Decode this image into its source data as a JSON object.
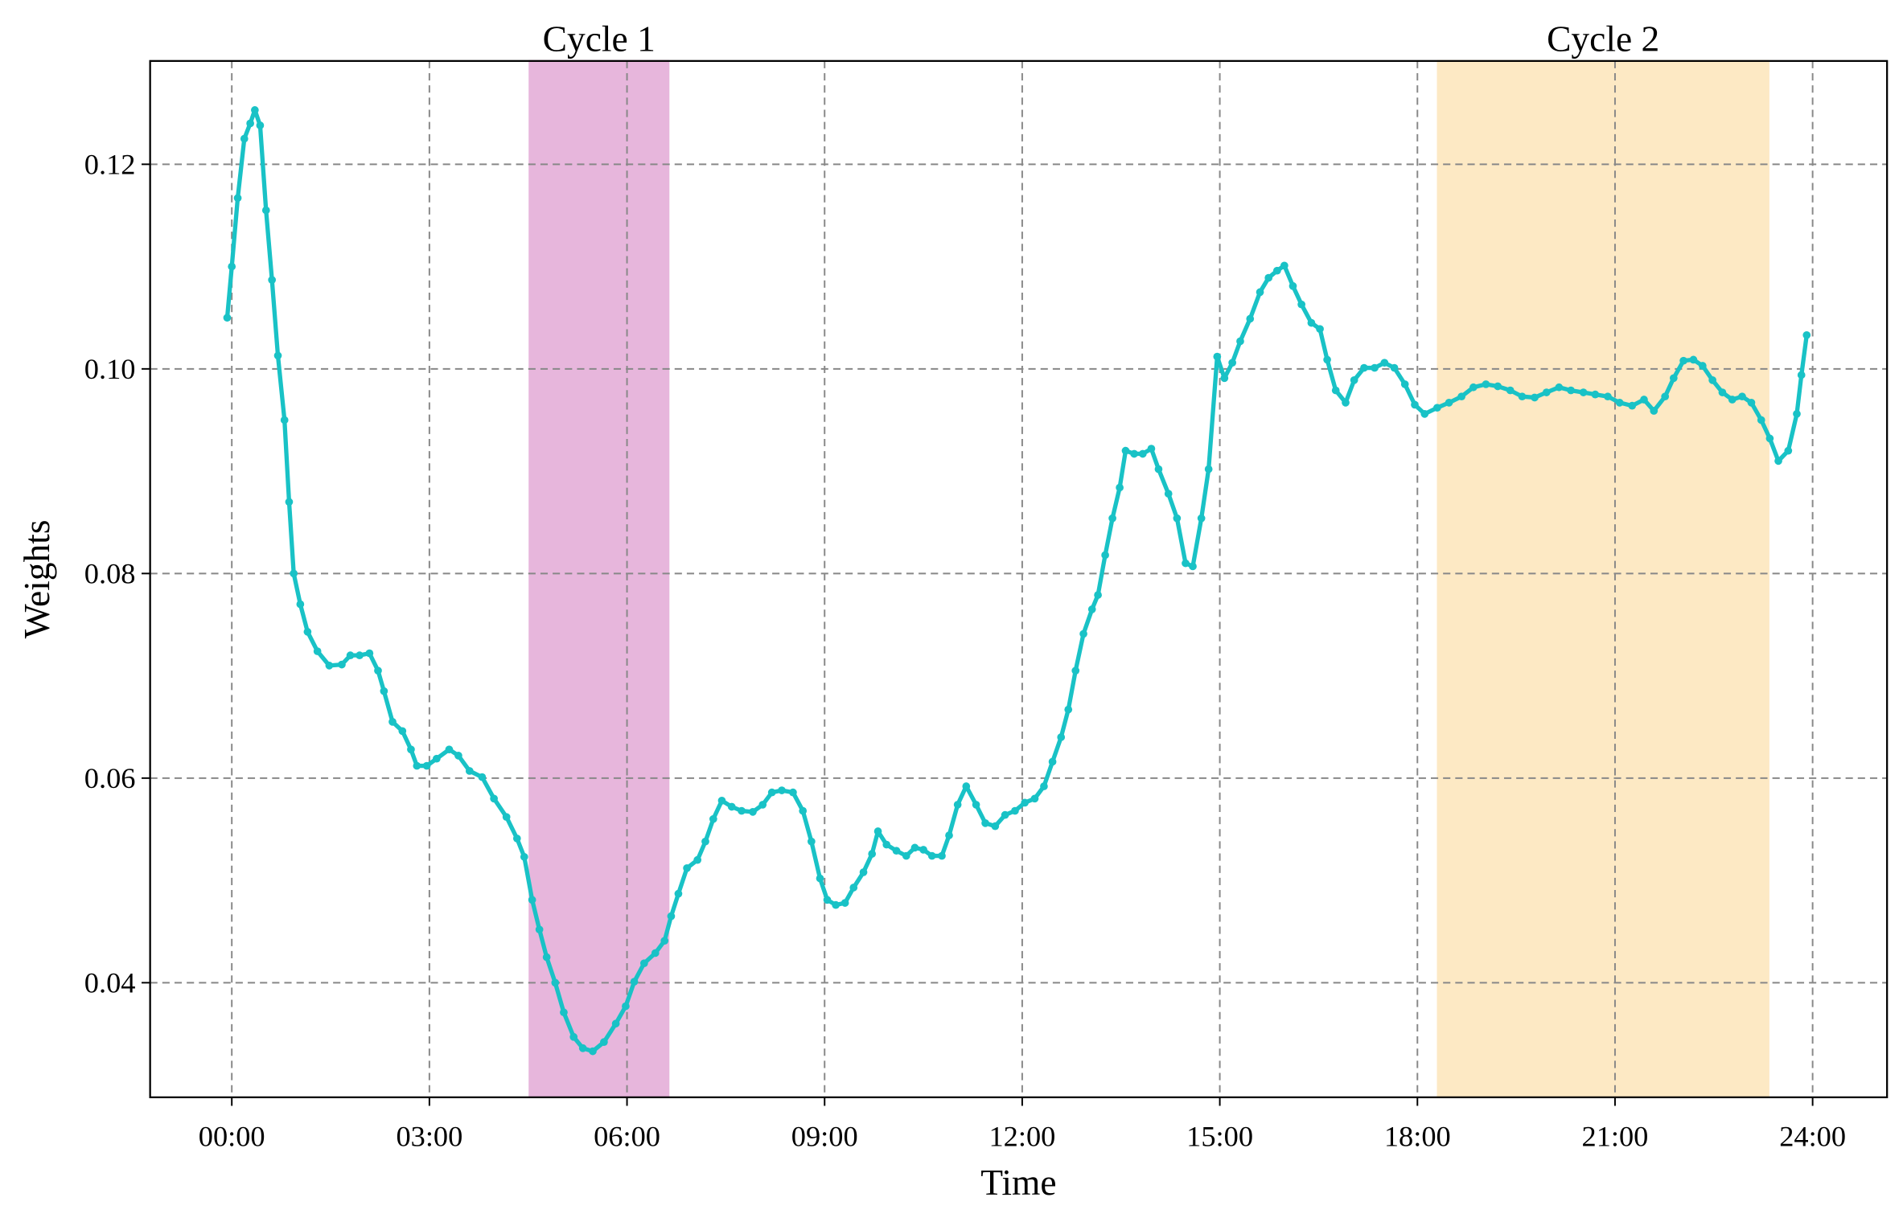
{
  "chart_data": {
    "type": "line",
    "xlabel": "Time",
    "ylabel": "Weights",
    "color": "#19c2c6",
    "grid": true,
    "xlim": [
      -1.24,
      25.13
    ],
    "ylim": [
      0.0288,
      0.1301
    ],
    "xticks": [
      {
        "value": 0,
        "label": "00:00"
      },
      {
        "value": 3,
        "label": "03:00"
      },
      {
        "value": 6,
        "label": "06:00"
      },
      {
        "value": 9,
        "label": "09:00"
      },
      {
        "value": 12,
        "label": "12:00"
      },
      {
        "value": 15,
        "label": "15:00"
      },
      {
        "value": 18,
        "label": "18:00"
      },
      {
        "value": 21,
        "label": "21:00"
      },
      {
        "value": 24,
        "label": "24:00"
      }
    ],
    "yticks": [
      0.04,
      0.06,
      0.08,
      {
        "value": 0.1,
        "label": "0.10"
      },
      0.12
    ],
    "spans": [
      {
        "label": "Cycle 1",
        "start": 4.52,
        "end": 6.63,
        "color": "#e7b6dc"
      },
      {
        "label": "Cycle 2",
        "start": 18.31,
        "end": 23.33,
        "color": "#fde9c4"
      }
    ],
    "x": [
      -0.07,
      0,
      0.09,
      0.19,
      0.28,
      0.35,
      0.43,
      0.52,
      0.61,
      0.7,
      0.8,
      0.87,
      0.94,
      1.04,
      1.15,
      1.3,
      1.48,
      1.67,
      1.8,
      1.94,
      2.09,
      2.22,
      2.31,
      2.44,
      2.59,
      2.72,
      2.81,
      2.96,
      3.11,
      3.3,
      3.44,
      3.61,
      3.8,
      3.98,
      4.17,
      4.33,
      4.44,
      4.56,
      4.67,
      4.78,
      4.91,
      5.04,
      5.19,
      5.33,
      5.48,
      5.65,
      5.83,
      5.98,
      6.11,
      6.26,
      6.43,
      6.57,
      6.67,
      6.78,
      6.91,
      7.07,
      7.19,
      7.31,
      7.44,
      7.59,
      7.74,
      7.91,
      8.06,
      8.2,
      8.35,
      8.52,
      8.67,
      8.8,
      8.93,
      9.04,
      9.17,
      9.31,
      9.44,
      9.59,
      9.72,
      9.81,
      9.94,
      10.09,
      10.24,
      10.37,
      10.5,
      10.63,
      10.78,
      10.89,
      11.02,
      11.15,
      11.3,
      11.44,
      11.59,
      11.74,
      11.89,
      12.04,
      12.19,
      12.33,
      12.46,
      12.59,
      12.7,
      12.81,
      12.93,
      13.06,
      13.15,
      13.26,
      13.37,
      13.48,
      13.57,
      13.7,
      13.83,
      13.96,
      14.07,
      14.22,
      14.35,
      14.48,
      14.59,
      14.72,
      14.83,
      14.96,
      15.07,
      15.19,
      15.31,
      15.46,
      15.61,
      15.74,
      15.87,
      15.98,
      16.11,
      16.24,
      16.39,
      16.52,
      16.63,
      16.76,
      16.91,
      17.04,
      17.19,
      17.35,
      17.5,
      17.65,
      17.81,
      17.96,
      18.11,
      18.3,
      18.48,
      18.67,
      18.85,
      19.04,
      19.22,
      19.41,
      19.59,
      19.78,
      19.96,
      20.15,
      20.33,
      20.52,
      20.7,
      20.89,
      21.07,
      21.26,
      21.44,
      21.59,
      21.76,
      21.89,
      22.04,
      22.19,
      22.33,
      22.48,
      22.63,
      22.78,
      22.93,
      23.07,
      23.22,
      23.35,
      23.48,
      23.63,
      23.76,
      23.83,
      23.91
    ],
    "values": [
      0.105,
      0.11,
      0.1167,
      0.1225,
      0.124,
      0.1253,
      0.1238,
      0.1155,
      0.1087,
      0.1013,
      0.095,
      0.087,
      0.08,
      0.077,
      0.0743,
      0.0724,
      0.071,
      0.0711,
      0.072,
      0.072,
      0.0722,
      0.0705,
      0.0685,
      0.0655,
      0.0646,
      0.0628,
      0.0612,
      0.0612,
      0.0619,
      0.0628,
      0.0622,
      0.0607,
      0.0601,
      0.058,
      0.0562,
      0.0541,
      0.0523,
      0.0481,
      0.0452,
      0.0425,
      0.04,
      0.0371,
      0.0347,
      0.0336,
      0.0333,
      0.0342,
      0.036,
      0.0377,
      0.0401,
      0.0419,
      0.0429,
      0.0441,
      0.0465,
      0.0487,
      0.0512,
      0.052,
      0.0538,
      0.056,
      0.0578,
      0.0572,
      0.0568,
      0.0567,
      0.0574,
      0.0586,
      0.0588,
      0.0586,
      0.0568,
      0.0538,
      0.0502,
      0.0481,
      0.0476,
      0.0478,
      0.0493,
      0.0508,
      0.0526,
      0.0548,
      0.0535,
      0.0529,
      0.0524,
      0.0532,
      0.053,
      0.0524,
      0.0524,
      0.0544,
      0.0574,
      0.0592,
      0.0574,
      0.0556,
      0.0553,
      0.0564,
      0.0568,
      0.0576,
      0.058,
      0.0592,
      0.0616,
      0.064,
      0.0667,
      0.0705,
      0.0741,
      0.0765,
      0.0779,
      0.0818,
      0.0854,
      0.0884,
      0.092,
      0.0917,
      0.0917,
      0.0922,
      0.0902,
      0.0878,
      0.0854,
      0.081,
      0.0807,
      0.0854,
      0.0902,
      0.1012,
      0.0991,
      0.1006,
      0.1027,
      0.1049,
      0.1075,
      0.1089,
      0.1096,
      0.1101,
      0.1081,
      0.1063,
      0.1045,
      0.1039,
      0.1009,
      0.0979,
      0.0967,
      0.0989,
      0.1001,
      0.1001,
      0.1006,
      0.1001,
      0.0985,
      0.0965,
      0.0956,
      0.0962,
      0.0967,
      0.0973,
      0.0982,
      0.0985,
      0.0983,
      0.0979,
      0.0973,
      0.0972,
      0.0977,
      0.0982,
      0.0979,
      0.0977,
      0.0975,
      0.0973,
      0.0967,
      0.0964,
      0.097,
      0.0959,
      0.0973,
      0.0991,
      0.1008,
      0.1009,
      0.1003,
      0.0989,
      0.0977,
      0.097,
      0.0973,
      0.0967,
      0.095,
      0.0932,
      0.091,
      0.092,
      0.0956,
      0.0994,
      0.1033
    ]
  }
}
